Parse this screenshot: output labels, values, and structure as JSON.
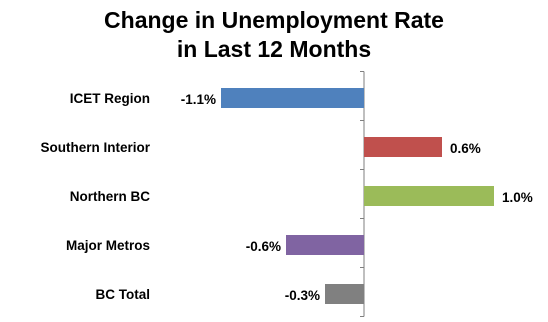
{
  "chart_data": {
    "type": "bar",
    "orientation": "horizontal",
    "title_lines": [
      "Change in Unemployment Rate",
      "in Last 12 Months"
    ],
    "categories": [
      "ICET Region",
      "Southern Interior",
      "Northern BC",
      "Major Metros",
      "BC Total"
    ],
    "values": [
      -1.1,
      0.6,
      1.0,
      -0.6,
      -0.3
    ],
    "value_labels": [
      "-1.1%",
      "0.6%",
      "1.0%",
      "-0.6%",
      "-0.3%"
    ],
    "colors": [
      "#4f81bd",
      "#c0504d",
      "#9bbb59",
      "#8064a2",
      "#808080"
    ],
    "unit": "%",
    "xlim": [
      -1.1,
      1.0
    ],
    "grid": false,
    "legend": "none"
  }
}
